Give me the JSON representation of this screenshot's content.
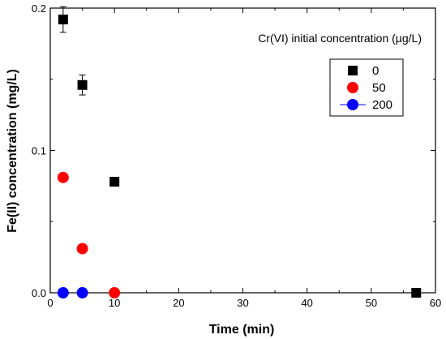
{
  "chart_data": {
    "type": "scatter",
    "title": "",
    "annotation": "Cr(VI) initial concentration (µg/L)",
    "xlabel": "Time (min)",
    "ylabel": "Fe(II) concentration (mg/L)",
    "xlim": [
      0,
      60
    ],
    "ylim": [
      0,
      0.2
    ],
    "x_ticks": [
      0,
      10,
      20,
      30,
      40,
      50,
      60
    ],
    "y_ticks": [
      0.0,
      0.1,
      0.2
    ],
    "x_tick_labels": [
      "0",
      "10",
      "20",
      "30",
      "40",
      "50",
      "60"
    ],
    "y_tick_labels": [
      "0.0",
      "0.1",
      "0.2"
    ],
    "grid": false,
    "legend_position": "top-right",
    "series": [
      {
        "name": "0",
        "marker": "square",
        "color": "#000000",
        "x": [
          2,
          5,
          10,
          57
        ],
        "y": [
          0.192,
          0.146,
          0.078,
          0.0
        ],
        "err": [
          0.009,
          0.007,
          0,
          0
        ]
      },
      {
        "name": "50",
        "marker": "circle",
        "color": "#ff0000",
        "x": [
          2,
          5,
          10
        ],
        "y": [
          0.081,
          0.031,
          0.0
        ],
        "err": [
          0,
          0,
          0
        ]
      },
      {
        "name": "200",
        "marker": "circle",
        "color": "#0000ff",
        "x": [
          2,
          5
        ],
        "y": [
          0.0,
          0.0
        ],
        "err": [
          0,
          0
        ]
      }
    ]
  }
}
